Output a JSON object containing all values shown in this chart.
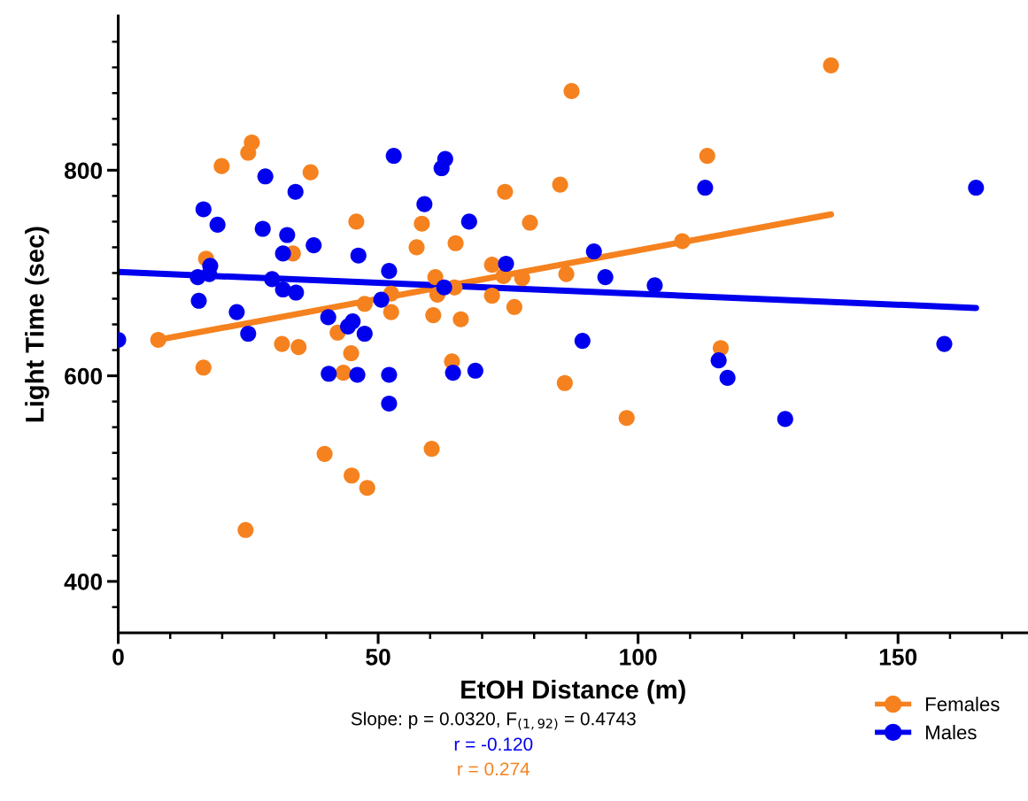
{
  "chart_data": {
    "type": "scatter",
    "xlabel": "EtOH Distance (m)",
    "ylabel": "Light Time (sec)",
    "xlim": [
      0,
      175
    ],
    "ylim": [
      350,
      950
    ],
    "xticks": [
      0,
      {
        "value": 10,
        "label": null
      },
      {
        "value": 20,
        "label": null
      },
      {
        "value": 30,
        "label": null
      },
      {
        "value": 40,
        "label": null
      },
      50,
      {
        "value": 60,
        "label": null
      },
      {
        "value": 70,
        "label": null
      },
      {
        "value": 80,
        "label": null
      },
      {
        "value": 90,
        "label": null
      },
      100,
      {
        "value": 110,
        "label": null
      },
      {
        "value": 120,
        "label": null
      },
      {
        "value": 130,
        "label": null
      },
      {
        "value": 140,
        "label": null
      },
      150,
      {
        "value": 160,
        "label": null
      },
      {
        "value": 170,
        "label": null
      }
    ],
    "yticks": [
      {
        "value": 375,
        "label": null
      },
      400,
      {
        "value": 425,
        "label": null
      },
      {
        "value": 450,
        "label": null
      },
      {
        "value": 475,
        "label": null
      },
      {
        "value": 500,
        "label": null
      },
      {
        "value": 525,
        "label": null
      },
      {
        "value": 550,
        "label": null
      },
      {
        "value": 575,
        "label": null
      },
      600,
      {
        "value": 625,
        "label": null
      },
      {
        "value": 650,
        "label": null
      },
      {
        "value": 675,
        "label": null
      },
      {
        "value": 700,
        "label": null
      },
      {
        "value": 725,
        "label": null
      },
      {
        "value": 750,
        "label": null
      },
      {
        "value": 775,
        "label": null
      },
      800,
      {
        "value": 825,
        "label": null
      },
      {
        "value": 850,
        "label": null
      },
      {
        "value": 875,
        "label": null
      },
      {
        "value": 900,
        "label": null
      },
      {
        "value": 925,
        "label": null
      }
    ],
    "grid": false,
    "legend": "bottom right",
    "marker": "circle",
    "annotations": [
      "Slope: p = 0.0320, F$_{(1,92)}$ = 0.4743",
      "r = -0.120",
      "r = 0.274"
    ],
    "series": [
      {
        "name": "Females",
        "color": "#f5821f",
        "x": [
          7.7,
          16.4,
          16.9,
          19.9,
          25,
          25.7,
          24.5,
          31.5,
          33.6,
          34.7,
          37,
          39.7,
          42.2,
          43.3,
          44.8,
          44.9,
          45.8,
          47.4,
          47.9,
          52.5,
          52.5,
          57.4,
          58.4,
          60.3,
          60.6,
          61,
          61.4,
          64.2,
          64.7,
          64.9,
          65.9,
          71.9,
          71.9,
          74.1,
          74.4,
          76.2,
          77.7,
          79.2,
          85,
          85.9,
          86.2,
          87.2,
          97.8,
          108.5,
          113.3,
          115.9,
          137.1
        ],
        "values": [
          635,
          608,
          714,
          804,
          817,
          827,
          450,
          631,
          719,
          628,
          798,
          524,
          642,
          603,
          622,
          503,
          750,
          670,
          491,
          680,
          662,
          725,
          748,
          529,
          659,
          696,
          679,
          614,
          686,
          729,
          655,
          708,
          678,
          697,
          779,
          667,
          695,
          749,
          786,
          593,
          699,
          877,
          559,
          731,
          814,
          627,
          902
        ]
      },
      {
        "name": "Males",
        "color": "#0000ee",
        "x": [
          0,
          15.3,
          15.5,
          16.4,
          17.5,
          17.7,
          19.1,
          22.8,
          25,
          27.8,
          28.3,
          29.6,
          31.7,
          31.7,
          32.5,
          34.1,
          34.2,
          37.6,
          40.4,
          40.5,
          44.2,
          45.1,
          46,
          46.2,
          47.4,
          50.6,
          52.1,
          52.1,
          52.1,
          53,
          58.9,
          62.2,
          62.7,
          62.9,
          64.4,
          67.5,
          68.7,
          74.6,
          89.3,
          91.5,
          93.7,
          103.2,
          112.9,
          115.5,
          117.2,
          128.3,
          158.9,
          165
        ],
        "values": [
          635,
          696,
          673,
          762,
          699,
          707,
          747,
          662,
          641,
          743,
          794,
          694,
          719,
          684,
          737,
          779,
          681,
          727,
          657,
          602,
          648,
          653,
          601,
          717,
          641,
          674,
          702,
          601,
          573,
          814,
          767,
          802,
          686,
          811,
          603,
          750,
          605,
          709,
          634,
          721,
          696,
          688,
          783,
          615,
          598,
          558,
          631,
          783
        ]
      },
      {
        "type": "line",
        "color": "#f5821f",
        "marker": "none",
        "x": [
          7.7,
          137.1
        ],
        "values": [
          635,
          757
        ]
      },
      {
        "type": "line",
        "color": "#0000ee",
        "marker": "none",
        "x": [
          0,
          165
        ],
        "values": [
          701,
          666
        ]
      }
    ]
  }
}
